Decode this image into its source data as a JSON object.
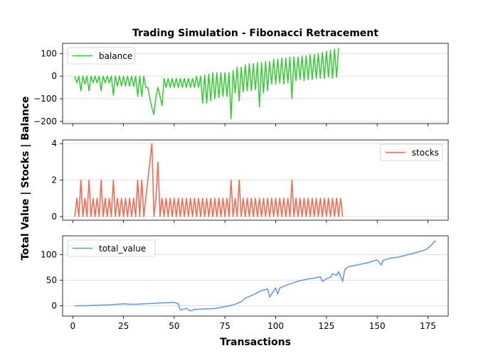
{
  "figure": {
    "title": "Trading Simulation - Fibonacci Retracement",
    "ylabel": "Total Value | Stocks | Balance",
    "xlabel": "Transactions"
  },
  "chart_data": [
    {
      "type": "line",
      "legend": "top-left",
      "grid": "horizontal",
      "xlim": [
        -5,
        185
      ],
      "ylim": [
        -210,
        145
      ],
      "yticks": [
        -200,
        -100,
        0,
        100
      ],
      "xticks": [
        0,
        25,
        50,
        75,
        100,
        125,
        150,
        175
      ],
      "show_xtick_labels": false,
      "series": [
        {
          "name": "balance",
          "color": "#32cd32",
          "x_start": 1,
          "values": [
            0,
            -30,
            0,
            -65,
            0,
            -35,
            0,
            -65,
            0,
            -30,
            0,
            -30,
            0,
            -65,
            0,
            -30,
            0,
            -30,
            0,
            -85,
            0,
            -45,
            0,
            -45,
            0,
            -45,
            0,
            -45,
            0,
            -45,
            0,
            -90,
            0,
            -90,
            0,
            -50,
            -50,
            -100,
            -140,
            -170,
            -90,
            -50,
            -90,
            -130,
            -10,
            -50,
            -10,
            -50,
            -10,
            -50,
            -10,
            -50,
            -10,
            -50,
            -10,
            -50,
            -10,
            -50,
            -10,
            -50,
            0,
            -50,
            0,
            -120,
            5,
            -120,
            10,
            -110,
            15,
            -100,
            15,
            -95,
            15,
            -90,
            15,
            -90,
            15,
            -190,
            25,
            -75,
            40,
            -110,
            40,
            -70,
            50,
            -65,
            55,
            -65,
            55,
            -60,
            60,
            -135,
            60,
            -75,
            65,
            -65,
            65,
            -35,
            75,
            -35,
            75,
            -30,
            80,
            -35,
            80,
            -30,
            85,
            -100,
            85,
            -20,
            85,
            -15,
            90,
            -20,
            90,
            -15,
            95,
            -15,
            95,
            -10,
            100,
            -10,
            105,
            -10,
            110,
            -5,
            115,
            -10,
            120,
            -5,
            125
          ]
        }
      ]
    },
    {
      "type": "line",
      "legend": "top-right",
      "grid": "horizontal",
      "xlim": [
        -5,
        185
      ],
      "ylim": [
        -0.2,
        4.2
      ],
      "yticks": [
        0,
        2,
        4
      ],
      "xticks": [
        0,
        25,
        50,
        75,
        100,
        125,
        150,
        175
      ],
      "show_xtick_labels": false,
      "series": [
        {
          "name": "stocks",
          "color": "#ff6347",
          "x_start": 1,
          "values": [
            0,
            1,
            0,
            2,
            0,
            1,
            0,
            2,
            0,
            1,
            0,
            1,
            0,
            2,
            0,
            1,
            0,
            1,
            0,
            2,
            0,
            1,
            0,
            1,
            0,
            1,
            0,
            1,
            0,
            1,
            0,
            2,
            0,
            2,
            0,
            1,
            2,
            3,
            4,
            0,
            1,
            3,
            0,
            1,
            0,
            1,
            0,
            1,
            0,
            1,
            0,
            1,
            0,
            1,
            0,
            1,
            0,
            1,
            0,
            1,
            0,
            1,
            0,
            1,
            0,
            1,
            0,
            1,
            0,
            1,
            0,
            1,
            0,
            1,
            0,
            1,
            0,
            2,
            0,
            1,
            0,
            2,
            0,
            1,
            0,
            1,
            0,
            1,
            0,
            1,
            0,
            1,
            0,
            1,
            0,
            1,
            0,
            1,
            0,
            1,
            0,
            1,
            0,
            1,
            0,
            1,
            0,
            2,
            0,
            1,
            0,
            1,
            0,
            1,
            0,
            1,
            0,
            1,
            0,
            1,
            0,
            1,
            0,
            1,
            0,
            1,
            0,
            1,
            0,
            1,
            0,
            1,
            0
          ]
        }
      ]
    },
    {
      "type": "line",
      "legend": "top-left",
      "grid": "horizontal",
      "xlim": [
        -5,
        185
      ],
      "ylim": [
        -20,
        137
      ],
      "yticks": [
        0,
        50,
        100
      ],
      "xticks": [
        0,
        25,
        50,
        75,
        100,
        125,
        150,
        175
      ],
      "show_xtick_labels": true,
      "series": [
        {
          "name": "total_value",
          "color": "#6495ed",
          "x": [
            1,
            10,
            18,
            25,
            30,
            40,
            45,
            50,
            52,
            53,
            56,
            58,
            60,
            70,
            77,
            80,
            83,
            85,
            89,
            93,
            96,
            97,
            100,
            101,
            102,
            105,
            110,
            115,
            120,
            122,
            123,
            125,
            127,
            128,
            130,
            131,
            133,
            134,
            136,
            140,
            145,
            150,
            152,
            153,
            156,
            160,
            165,
            170,
            174,
            175,
            177,
            178,
            179
          ],
          "values": [
            0,
            1,
            2,
            4,
            3,
            5,
            6,
            7,
            4,
            -8,
            -5,
            -10,
            -7,
            -5,
            0,
            3,
            8,
            15,
            22,
            30,
            33,
            17,
            35,
            23,
            35,
            40,
            47,
            52,
            55,
            57,
            48,
            53,
            56,
            63,
            60,
            67,
            48,
            71,
            77,
            80,
            84,
            90,
            80,
            89,
            93,
            95,
            100,
            105,
            110,
            113,
            120,
            125,
            127
          ]
        }
      ]
    }
  ]
}
